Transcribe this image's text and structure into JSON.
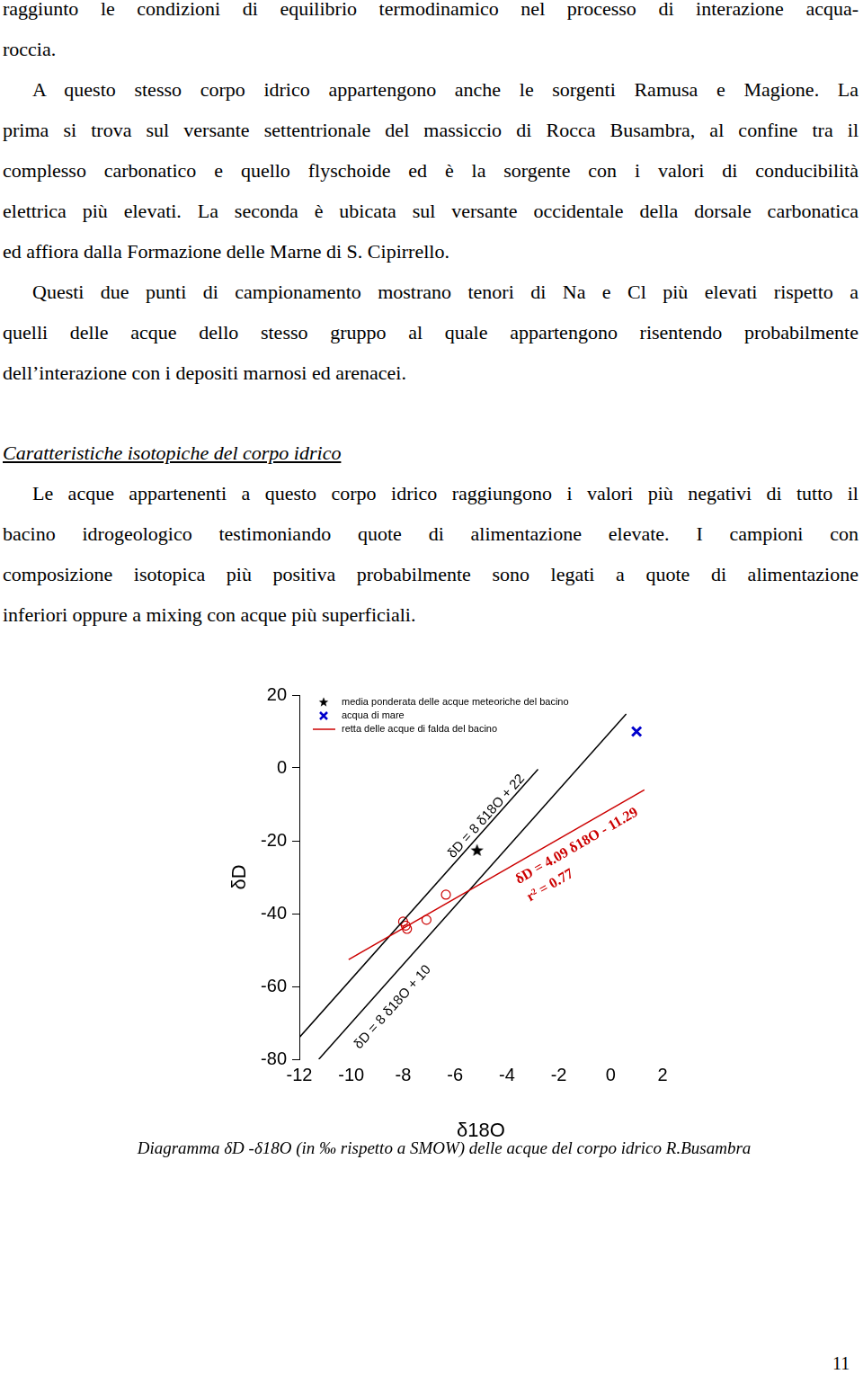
{
  "page": {
    "blocks": [
      {
        "kind": "continuation",
        "lines": [
          "raggiunto le condizioni di equilibrio termodinamico nel processo di interazione acqua-",
          "roccia."
        ]
      },
      {
        "kind": "paragraph",
        "lines": [
          "A questo stesso corpo idrico appartengono anche le sorgenti Ramusa e Magione. La",
          "prima si trova sul versante settentrionale del massiccio di Rocca Busambra, al confine tra il",
          "complesso carbonatico e quello flyschoide ed è la sorgente con i valori di conducibilità",
          "elettrica più elevati. La seconda è ubicata sul versante occidentale della dorsale carbonatica",
          "ed affiora dalla Formazione delle Marne di S. Cipirrello."
        ]
      },
      {
        "kind": "paragraph",
        "lines": [
          "Questi due punti di campionamento mostrano tenori di Na e Cl più elevati rispetto a",
          "quelli delle acque dello stesso gruppo al quale appartengono risentendo probabilmente",
          "dell’interazione con i depositi marnosi ed arenacei."
        ]
      },
      {
        "kind": "heading",
        "text": "Caratteristiche isotopiche del corpo idrico"
      },
      {
        "kind": "paragraph",
        "lines": [
          "Le acque appartenenti a questo corpo idrico raggiungono i valori più negativi di tutto il",
          "bacino idrogeologico testimoniando quote di alimentazione elevate. I campioni con",
          "composizione isotopica più positiva probabilmente sono legati a quote di alimentazione",
          "inferiori oppure a mixing con acque più superficiali."
        ]
      }
    ],
    "caption": "Diagramma δD -δ18O (in ‰ rispetto a SMOW) delle acque del corpo idrico R.Busambra",
    "page_number": "11"
  },
  "chart_data": {
    "type": "scatter",
    "x_label": "δ18O",
    "y_label": "δD",
    "xlim": [
      -12,
      2
    ],
    "xticks": [
      -12,
      -10,
      -8,
      -6,
      -4,
      -2,
      0,
      2
    ],
    "ylim": [
      -80,
      20
    ],
    "yticks": [
      -80,
      -60,
      -40,
      -20,
      0,
      20
    ],
    "grid": false,
    "legend": "top-left",
    "series": [
      {
        "name": "media ponderata delle acque meteoriche del bacino",
        "color": "#000000",
        "marker": "star",
        "x": [
          -5.15
        ],
        "values": [
          -22.7
        ]
      },
      {
        "name": "acqua di mare",
        "color": "#0000cc",
        "marker": "x",
        "x": [
          1.0
        ],
        "values": [
          10
        ]
      },
      {
        "name": "retta delle acque di falda del bacino",
        "color": "#cc0000",
        "type": "line",
        "line_style": "solid",
        "x": [
          -10.1,
          1.3
        ],
        "values": [
          -52.6,
          -6
        ]
      },
      {
        "color": "#000000",
        "type": "line",
        "line_style": "solid",
        "x": [
          -12,
          -2.8
        ],
        "values": [
          -74,
          -0.4
        ]
      },
      {
        "color": "#000000",
        "type": "line",
        "line_style": "solid",
        "x": [
          -11.25,
          0.6
        ],
        "values": [
          -80,
          14.8
        ]
      },
      {
        "color": "#cc0000",
        "marker": "open_circle",
        "x": [
          -6.35,
          -7.1,
          -8.0,
          -7.85,
          -7.9
        ],
        "values": [
          -34.8,
          -41.7,
          -42.2,
          -44.2,
          -43.3
        ]
      }
    ],
    "annotations": [
      {
        "text": "δD = 8 δ18O + 22",
        "color": "#000000"
      },
      {
        "text": "δD = 8 δ18O + 10",
        "color": "#000000"
      },
      {
        "text": "δD = 4.09 δ18O - 11.29",
        "color": "#cc0000"
      },
      {
        "text": "r² = 0.77",
        "color": "#cc0000"
      }
    ]
  }
}
